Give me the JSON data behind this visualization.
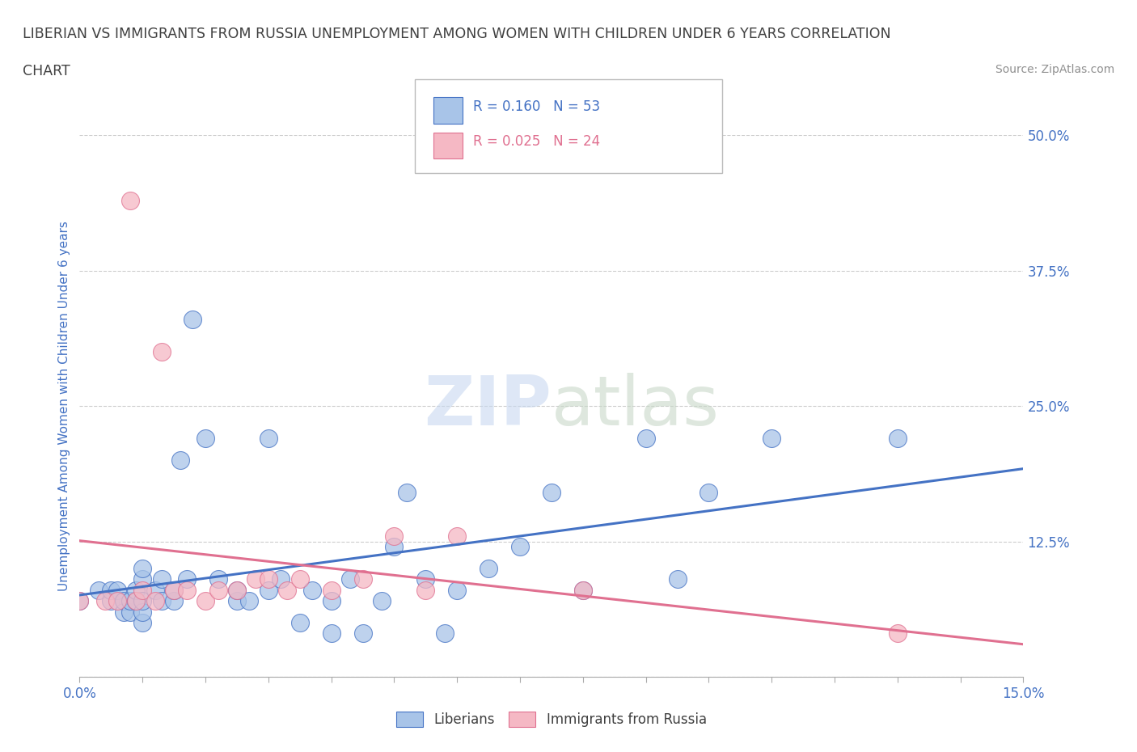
{
  "title_line1": "LIBERIAN VS IMMIGRANTS FROM RUSSIA UNEMPLOYMENT AMONG WOMEN WITH CHILDREN UNDER 6 YEARS CORRELATION",
  "title_line2": "CHART",
  "source_text": "Source: ZipAtlas.com",
  "ylabel": "Unemployment Among Women with Children Under 6 years",
  "xlim": [
    0.0,
    0.15
  ],
  "ylim": [
    0.0,
    0.5
  ],
  "ytick_positions": [
    0.0,
    0.125,
    0.25,
    0.375,
    0.5
  ],
  "ytick_labels": [
    "",
    "12.5%",
    "25.0%",
    "37.5%",
    "50.0%"
  ],
  "liberian_R": 0.16,
  "liberian_N": 53,
  "russia_R": 0.025,
  "russia_N": 24,
  "legend_label1": "Liberians",
  "legend_label2": "Immigrants from Russia",
  "blue_color": "#a8c4e8",
  "pink_color": "#f5b8c4",
  "blue_line_color": "#4472c4",
  "pink_line_color": "#e07090",
  "title_color": "#404040",
  "axis_label_color": "#4472c4",
  "tick_label_color": "#4472c4",
  "source_color": "#909090",
  "liberian_x": [
    0.0,
    0.003,
    0.005,
    0.005,
    0.006,
    0.007,
    0.007,
    0.008,
    0.008,
    0.009,
    0.009,
    0.01,
    0.01,
    0.01,
    0.01,
    0.01,
    0.012,
    0.013,
    0.013,
    0.015,
    0.015,
    0.016,
    0.017,
    0.018,
    0.02,
    0.022,
    0.025,
    0.025,
    0.027,
    0.03,
    0.03,
    0.032,
    0.035,
    0.037,
    0.04,
    0.04,
    0.043,
    0.045,
    0.048,
    0.05,
    0.052,
    0.055,
    0.058,
    0.06,
    0.065,
    0.07,
    0.075,
    0.08,
    0.09,
    0.095,
    0.1,
    0.11,
    0.13
  ],
  "liberian_y": [
    0.07,
    0.08,
    0.07,
    0.08,
    0.08,
    0.06,
    0.07,
    0.06,
    0.07,
    0.07,
    0.08,
    0.05,
    0.06,
    0.07,
    0.09,
    0.1,
    0.08,
    0.07,
    0.09,
    0.07,
    0.08,
    0.2,
    0.09,
    0.33,
    0.22,
    0.09,
    0.07,
    0.08,
    0.07,
    0.08,
    0.22,
    0.09,
    0.05,
    0.08,
    0.04,
    0.07,
    0.09,
    0.04,
    0.07,
    0.12,
    0.17,
    0.09,
    0.04,
    0.08,
    0.1,
    0.12,
    0.17,
    0.08,
    0.22,
    0.09,
    0.17,
    0.22,
    0.22
  ],
  "russia_x": [
    0.0,
    0.004,
    0.006,
    0.008,
    0.009,
    0.01,
    0.012,
    0.013,
    0.015,
    0.017,
    0.02,
    0.022,
    0.025,
    0.028,
    0.03,
    0.033,
    0.035,
    0.04,
    0.045,
    0.05,
    0.055,
    0.06,
    0.08,
    0.13
  ],
  "russia_y": [
    0.07,
    0.07,
    0.07,
    0.44,
    0.07,
    0.08,
    0.07,
    0.3,
    0.08,
    0.08,
    0.07,
    0.08,
    0.08,
    0.09,
    0.09,
    0.08,
    0.09,
    0.08,
    0.09,
    0.13,
    0.08,
    0.13,
    0.08,
    0.04
  ]
}
